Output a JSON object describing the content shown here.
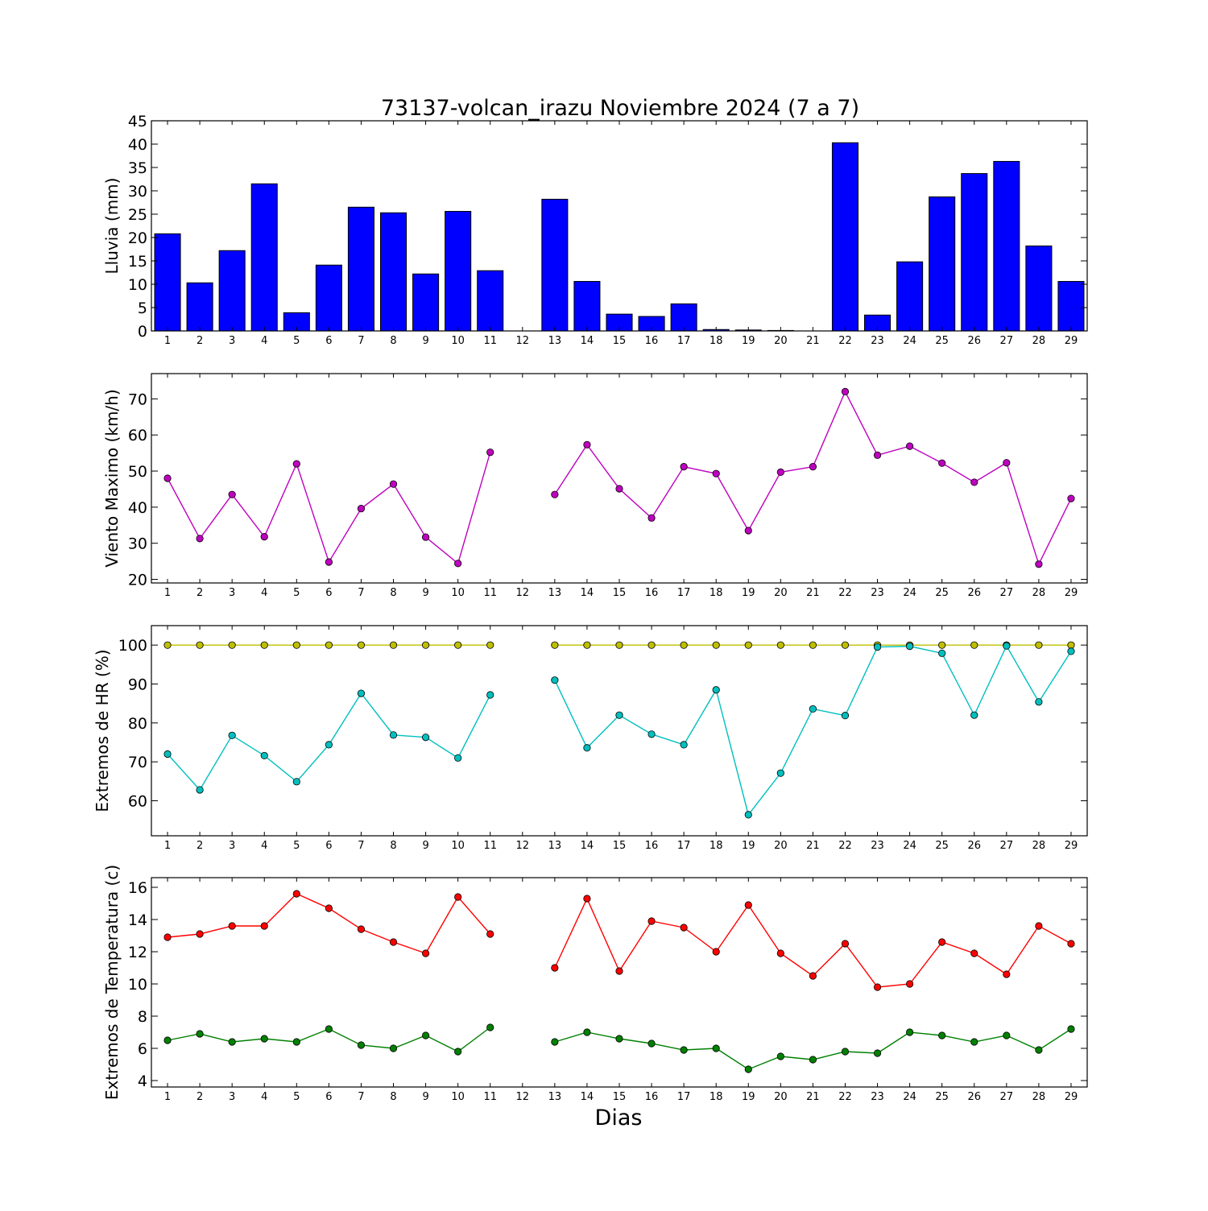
{
  "figure": {
    "title": "73137-volcan_irazu Noviembre 2024  (7 a 7)",
    "xlabel": "Dias"
  },
  "colors": {
    "rain": "#0000ff",
    "wind": "#bf00bf",
    "hr_max": "#bfbf00",
    "hr_min": "#00bfbf",
    "temp_max": "#ff0000",
    "temp_min": "#008000"
  },
  "chart_data": [
    {
      "type": "bar",
      "ylabel": "Lluvia (mm)",
      "categories": [
        "1",
        "2",
        "3",
        "4",
        "5",
        "6",
        "7",
        "8",
        "9",
        "10",
        "11",
        "12",
        "13",
        "14",
        "15",
        "16",
        "17",
        "18",
        "19",
        "20",
        "21",
        "22",
        "23",
        "24",
        "25",
        "26",
        "27",
        "28",
        "29"
      ],
      "values": [
        20.8,
        10.3,
        17.2,
        31.5,
        3.9,
        14.1,
        26.5,
        25.3,
        12.2,
        25.6,
        12.9,
        null,
        28.2,
        10.6,
        3.6,
        3.1,
        5.8,
        0.3,
        0.2,
        0.1,
        0.0,
        40.3,
        3.4,
        14.8,
        28.7,
        33.7,
        36.3,
        18.2,
        10.6
      ],
      "ylim": [
        0,
        45
      ],
      "yticks": [
        0,
        5,
        10,
        15,
        20,
        25,
        30,
        35,
        40,
        45
      ],
      "grid": false
    },
    {
      "type": "line",
      "ylabel": "Viento Maximo (km/h)",
      "categories": [
        "1",
        "2",
        "3",
        "4",
        "5",
        "6",
        "7",
        "8",
        "9",
        "10",
        "11",
        "12",
        "13",
        "14",
        "15",
        "16",
        "17",
        "18",
        "19",
        "20",
        "21",
        "22",
        "23",
        "24",
        "25",
        "26",
        "27",
        "28",
        "29"
      ],
      "series": [
        {
          "values": [
            48.0,
            31.3,
            43.5,
            31.8,
            52.0,
            24.8,
            39.6,
            46.4,
            31.7,
            24.4,
            55.2,
            null,
            43.5,
            57.3,
            45.1,
            37.0,
            51.2,
            49.3,
            33.5,
            49.7,
            51.2,
            72.0,
            54.4,
            56.9,
            52.2,
            46.9,
            52.3,
            24.2,
            42.4
          ]
        }
      ],
      "ylim": [
        19,
        77
      ],
      "yticks": [
        20,
        30,
        40,
        50,
        60,
        70
      ],
      "grid": false
    },
    {
      "type": "line",
      "ylabel": "Extremos de HR (%)",
      "categories": [
        "1",
        "2",
        "3",
        "4",
        "5",
        "6",
        "7",
        "8",
        "9",
        "10",
        "11",
        "12",
        "13",
        "14",
        "15",
        "16",
        "17",
        "18",
        "19",
        "20",
        "21",
        "22",
        "23",
        "24",
        "25",
        "26",
        "27",
        "28",
        "29"
      ],
      "series": [
        {
          "values": [
            100,
            100,
            100,
            100,
            100,
            100,
            100,
            100,
            100,
            100,
            100,
            null,
            100,
            100,
            100,
            100,
            100,
            100,
            100,
            100,
            100,
            100,
            100,
            100,
            100,
            100,
            100,
            100,
            100
          ]
        },
        {
          "values": [
            72.0,
            62.8,
            76.8,
            71.6,
            64.9,
            74.4,
            87.6,
            76.9,
            76.3,
            71.0,
            87.2,
            null,
            91.0,
            73.6,
            82.0,
            77.1,
            74.4,
            88.5,
            56.4,
            67.1,
            83.6,
            81.9,
            99.5,
            99.7,
            97.9,
            82.0,
            99.8,
            85.4,
            98.4
          ]
        }
      ],
      "ylim": [
        51,
        105
      ],
      "yticks": [
        60,
        70,
        80,
        90,
        100
      ],
      "grid": false
    },
    {
      "type": "line",
      "ylabel": "Extremos de Temperatura (c)",
      "categories": [
        "1",
        "2",
        "3",
        "4",
        "5",
        "6",
        "7",
        "8",
        "9",
        "10",
        "11",
        "12",
        "13",
        "14",
        "15",
        "16",
        "17",
        "18",
        "19",
        "20",
        "21",
        "22",
        "23",
        "24",
        "25",
        "26",
        "27",
        "28",
        "29"
      ],
      "series": [
        {
          "values": [
            12.9,
            13.1,
            13.6,
            13.6,
            15.6,
            14.7,
            13.4,
            12.6,
            11.9,
            15.4,
            13.1,
            null,
            11.0,
            15.3,
            10.8,
            13.9,
            13.5,
            12.0,
            14.9,
            11.9,
            10.5,
            12.5,
            9.8,
            10.0,
            12.6,
            11.9,
            10.6,
            13.6,
            12.5
          ]
        },
        {
          "values": [
            6.5,
            6.9,
            6.4,
            6.6,
            6.4,
            7.2,
            6.2,
            6.0,
            6.8,
            5.8,
            7.3,
            null,
            6.4,
            7.0,
            6.6,
            6.3,
            5.9,
            6.0,
            4.7,
            5.5,
            5.3,
            5.8,
            5.7,
            7.0,
            6.8,
            6.4,
            6.8,
            5.9,
            7.2
          ]
        }
      ],
      "ylim": [
        3.6,
        16.6
      ],
      "yticks": [
        4,
        6,
        8,
        10,
        12,
        14,
        16
      ],
      "grid": false
    }
  ]
}
